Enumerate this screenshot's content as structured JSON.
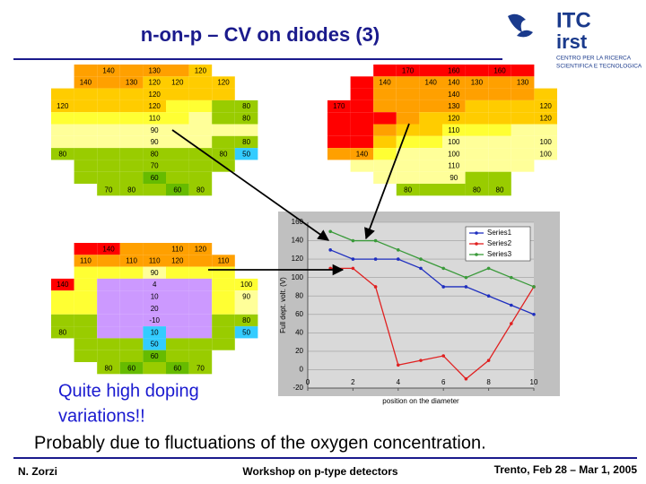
{
  "header": {
    "title": "n-on-p – CV on diodes (3)"
  },
  "logo": {
    "name1": "ITC",
    "name2": "irst",
    "caption": [
      "CENTRO PER LA RICERCA",
      "SCIENTIFICA E TECNOLOGICA"
    ]
  },
  "wafer_maps": [
    {
      "rows": [
        [
          null,
          {
            "color": "#ffa000"
          },
          {
            "color": "#ffa000",
            "value": 140
          },
          {
            "color": "#ffa000"
          },
          {
            "color": "#ffa000",
            "value": 130
          },
          {
            "color": "#ffa000"
          },
          {
            "color": "#ffcc00",
            "value": 120
          },
          null,
          null
        ],
        [
          null,
          {
            "color": "#ffa000",
            "value": 140
          },
          {
            "color": "#ffa000"
          },
          {
            "color": "#ffa000",
            "value": 130
          },
          {
            "color": "#ffcc00",
            "value": 120
          },
          {
            "color": "#ffcc00",
            "value": 120
          },
          {
            "color": "#ffcc00"
          },
          {
            "color": "#ffcc00",
            "value": 120
          },
          null
        ],
        [
          {
            "color": "#ffcc00"
          },
          {
            "color": "#ffcc00"
          },
          {
            "color": "#ffcc00"
          },
          {
            "color": "#ffcc00"
          },
          {
            "color": "#ffcc00",
            "value": 120
          },
          {
            "color": "#ffcc00"
          },
          {
            "color": "#ffcc00"
          },
          {
            "color": "#ffcc00"
          },
          null
        ],
        [
          {
            "color": "#ffcc00",
            "value": 120
          },
          {
            "color": "#ffcc00"
          },
          {
            "color": "#ffcc00"
          },
          {
            "color": "#ffcc00"
          },
          {
            "color": "#ffcc00",
            "value": 120
          },
          {
            "color": "#ffff33"
          },
          {
            "color": "#ffff33"
          },
          {
            "color": "#99cc00"
          },
          {
            "color": "#99cc00",
            "value": 80
          }
        ],
        [
          {
            "color": "#ffff33"
          },
          {
            "color": "#ffff33"
          },
          {
            "color": "#ffff33"
          },
          {
            "color": "#ffff33"
          },
          {
            "color": "#ffff33",
            "value": 110
          },
          {
            "color": "#ffff33"
          },
          {
            "color": "#ffff99"
          },
          {
            "color": "#99cc00"
          },
          {
            "color": "#99cc00",
            "value": 80
          }
        ],
        [
          {
            "color": "#ffff99"
          },
          {
            "color": "#ffff99"
          },
          {
            "color": "#ffff99"
          },
          {
            "color": "#ffff99"
          },
          {
            "color": "#ffff99",
            "value": 90
          },
          {
            "color": "#ffff99"
          },
          {
            "color": "#ffff99"
          },
          {
            "color": "#ffff99"
          },
          {
            "color": "#ffff99"
          }
        ],
        [
          {
            "color": "#ffff99"
          },
          {
            "color": "#ffff99"
          },
          {
            "color": "#ffff99"
          },
          {
            "color": "#ffff99"
          },
          {
            "color": "#ffff99",
            "value": 90
          },
          {
            "color": "#ffff99"
          },
          {
            "color": "#ffff99"
          },
          {
            "color": "#99cc00"
          },
          {
            "color": "#99cc00",
            "value": 80
          }
        ],
        [
          {
            "color": "#99cc00",
            "value": 80
          },
          {
            "color": "#99cc00"
          },
          {
            "color": "#99cc00"
          },
          {
            "color": "#99cc00"
          },
          {
            "color": "#99cc00",
            "value": 80
          },
          {
            "color": "#99cc00"
          },
          {
            "color": "#99cc00"
          },
          {
            "color": "#99cc00",
            "value": 80
          },
          {
            "color": "#33ccff",
            "value": 50
          }
        ],
        [
          null,
          {
            "color": "#99cc00"
          },
          {
            "color": "#99cc00"
          },
          {
            "color": "#99cc00"
          },
          {
            "color": "#99cc00",
            "value": 70
          },
          {
            "color": "#99cc00"
          },
          {
            "color": "#99cc00"
          },
          {
            "color": "#99cc00"
          },
          null
        ],
        [
          null,
          {
            "color": "#99cc00"
          },
          {
            "color": "#99cc00"
          },
          {
            "color": "#99cc00"
          },
          {
            "color": "#66bb00",
            "value": 60
          },
          {
            "color": "#99cc00"
          },
          {
            "color": "#99cc00"
          },
          null,
          null
        ],
        [
          null,
          null,
          {
            "color": "#99cc00",
            "value": 70
          },
          {
            "color": "#99cc00",
            "value": 80
          },
          {
            "color": "#99cc00"
          },
          {
            "color": "#66bb00",
            "value": 60
          },
          {
            "color": "#99cc00",
            "value": 80
          },
          null,
          null
        ]
      ]
    },
    {
      "rows": [
        [
          null,
          null,
          {
            "color": "#ff0000"
          },
          {
            "color": "#ff0000",
            "value": 170
          },
          {
            "color": "#ff0000"
          },
          {
            "color": "#ff0000",
            "value": 160
          },
          {
            "color": "#ff0000"
          },
          {
            "color": "#ff0000",
            "value": 160
          },
          {
            "color": "#ff0000"
          },
          null
        ],
        [
          null,
          {
            "color": "#ff0000"
          },
          {
            "color": "#ffa000",
            "value": 140
          },
          {
            "color": "#ffa000"
          },
          {
            "color": "#ffa000",
            "value": 140
          },
          {
            "color": "#ffa000",
            "value": 140
          },
          {
            "color": "#ffa000",
            "value": 130
          },
          {
            "color": "#ffa000"
          },
          {
            "color": "#ffa000",
            "value": 130
          },
          null
        ],
        [
          null,
          {
            "color": "#ff0000"
          },
          {
            "color": "#ffa000"
          },
          {
            "color": "#ffa000"
          },
          {
            "color": "#ffa000"
          },
          {
            "color": "#ffa000",
            "value": 140
          },
          {
            "color": "#ffa000"
          },
          {
            "color": "#ffa000"
          },
          {
            "color": "#ffa000"
          },
          {
            "color": "#ffcc00"
          }
        ],
        [
          {
            "color": "#ff0000",
            "value": 170
          },
          {
            "color": "#ff0000"
          },
          {
            "color": "#ffa000"
          },
          {
            "color": "#ffa000"
          },
          {
            "color": "#ffa000"
          },
          {
            "color": "#ffa000",
            "value": 130
          },
          {
            "color": "#ffcc00"
          },
          {
            "color": "#ffcc00"
          },
          {
            "color": "#ffcc00"
          },
          {
            "color": "#ffcc00",
            "value": 120
          }
        ],
        [
          {
            "color": "#ff0000"
          },
          {
            "color": "#ff0000"
          },
          {
            "color": "#ff0000"
          },
          {
            "color": "#ffa000"
          },
          {
            "color": "#ffcc00"
          },
          {
            "color": "#ffcc00",
            "value": 120
          },
          {
            "color": "#ffcc00"
          },
          {
            "color": "#ffcc00"
          },
          {
            "color": "#ffcc00"
          },
          {
            "color": "#ffcc00",
            "value": 120
          }
        ],
        [
          {
            "color": "#ff0000"
          },
          {
            "color": "#ff0000"
          },
          {
            "color": "#ffa000"
          },
          {
            "color": "#ffcc00"
          },
          {
            "color": "#ffcc00"
          },
          {
            "color": "#ffff33",
            "value": 110
          },
          {
            "color": "#ffff33"
          },
          {
            "color": "#ffff33"
          },
          {
            "color": "#ffff99"
          },
          {
            "color": "#ffff99"
          }
        ],
        [
          {
            "color": "#ff0000"
          },
          {
            "color": "#ff0000"
          },
          {
            "color": "#ffcc00"
          },
          {
            "color": "#ffff33"
          },
          {
            "color": "#ffff33"
          },
          {
            "color": "#ffff99",
            "value": 100
          },
          {
            "color": "#ffff99"
          },
          {
            "color": "#ffff99"
          },
          {
            "color": "#ffff99"
          },
          {
            "color": "#ffff99",
            "value": 100
          }
        ],
        [
          {
            "color": "#ffa000"
          },
          {
            "color": "#ffa000",
            "value": 140
          },
          {
            "color": "#ffff33"
          },
          {
            "color": "#ffff99"
          },
          {
            "color": "#ffff99"
          },
          {
            "color": "#ffff99",
            "value": 100
          },
          {
            "color": "#ffff99"
          },
          {
            "color": "#ffff99"
          },
          {
            "color": "#ffff99"
          },
          {
            "color": "#ffff99",
            "value": 100
          }
        ],
        [
          null,
          {
            "color": "#ffff99"
          },
          {
            "color": "#ffff99"
          },
          {
            "color": "#ffff99"
          },
          {
            "color": "#ffff99"
          },
          {
            "color": "#ffff99",
            "value": 110
          },
          {
            "color": "#ffff99"
          },
          {
            "color": "#ffff99"
          },
          {
            "color": "#ffff99"
          },
          null
        ],
        [
          null,
          null,
          {
            "color": "#ffff99"
          },
          {
            "color": "#ffff99"
          },
          {
            "color": "#ffff99"
          },
          {
            "color": "#ffff99",
            "value": 90
          },
          {
            "color": "#99cc00"
          },
          {
            "color": "#99cc00"
          },
          null,
          null
        ],
        [
          null,
          null,
          null,
          {
            "color": "#99cc00",
            "value": 80
          },
          {
            "color": "#99cc00"
          },
          {
            "color": "#99cc00"
          },
          {
            "color": "#99cc00",
            "value": 80
          },
          {
            "color": "#99cc00",
            "value": 80
          },
          null,
          null
        ]
      ]
    },
    {
      "rows": [
        [
          null,
          {
            "color": "#ff0000"
          },
          {
            "color": "#ff0000",
            "value": 140
          },
          {
            "color": "#ffa000"
          },
          {
            "color": "#ffa000"
          },
          {
            "color": "#ffa000",
            "value": 110
          },
          {
            "color": "#ffa000",
            "value": 120
          },
          null,
          null
        ],
        [
          null,
          {
            "color": "#ffa000",
            "value": 110
          },
          {
            "color": "#ffa000"
          },
          {
            "color": "#ffa000",
            "value": 110
          },
          {
            "color": "#ffa000",
            "value": 110
          },
          {
            "color": "#ffa000",
            "value": 120
          },
          {
            "color": "#ffa000"
          },
          {
            "color": "#ffa000",
            "value": 110
          },
          null
        ],
        [
          null,
          {
            "color": "#ffff33"
          },
          {
            "color": "#ffff33"
          },
          {
            "color": "#ffff33"
          },
          {
            "color": "#ffff99",
            "value": 90
          },
          {
            "color": "#ffff33"
          },
          {
            "color": "#ffff33"
          },
          {
            "color": "#ffff33"
          },
          null
        ],
        [
          {
            "color": "#ff0000",
            "value": 140
          },
          {
            "color": "#ffff33"
          },
          {
            "color": "#cc99ff"
          },
          {
            "color": "#cc99ff"
          },
          {
            "color": "#cc99ff",
            "value": 4
          },
          {
            "color": "#cc99ff"
          },
          {
            "color": "#cc99ff"
          },
          {
            "color": "#ffff33"
          },
          {
            "color": "#ffff33",
            "value": 100
          }
        ],
        [
          {
            "color": "#ffff33"
          },
          {
            "color": "#ffff33"
          },
          {
            "color": "#cc99ff"
          },
          {
            "color": "#cc99ff"
          },
          {
            "color": "#cc99ff",
            "value": 10
          },
          {
            "color": "#cc99ff"
          },
          {
            "color": "#cc99ff"
          },
          {
            "color": "#ffff33"
          },
          {
            "color": "#ffff99",
            "value": 90
          }
        ],
        [
          {
            "color": "#ffff33"
          },
          {
            "color": "#ffff33"
          },
          {
            "color": "#cc99ff"
          },
          {
            "color": "#cc99ff"
          },
          {
            "color": "#cc99ff",
            "value": 20
          },
          {
            "color": "#cc99ff"
          },
          {
            "color": "#cc99ff"
          },
          {
            "color": "#ffff33"
          },
          {
            "color": "#ffff99"
          }
        ],
        [
          {
            "color": "#99cc00"
          },
          {
            "color": "#99cc00"
          },
          {
            "color": "#cc99ff"
          },
          {
            "color": "#cc99ff"
          },
          {
            "color": "#cc99ff",
            "value": -10
          },
          {
            "color": "#cc99ff"
          },
          {
            "color": "#cc99ff"
          },
          {
            "color": "#99cc00"
          },
          {
            "color": "#99cc00",
            "value": 80
          }
        ],
        [
          {
            "color": "#99cc00",
            "value": 80
          },
          {
            "color": "#99cc00"
          },
          {
            "color": "#cc99ff"
          },
          {
            "color": "#cc99ff"
          },
          {
            "color": "#33ccff",
            "value": 10
          },
          {
            "color": "#cc99ff"
          },
          {
            "color": "#cc99ff"
          },
          {
            "color": "#99cc00"
          },
          {
            "color": "#33ccff",
            "value": 50
          }
        ],
        [
          null,
          {
            "color": "#99cc00"
          },
          {
            "color": "#99cc00"
          },
          {
            "color": "#99cc00"
          },
          {
            "color": "#33ccff",
            "value": 50
          },
          {
            "color": "#99cc00"
          },
          {
            "color": "#99cc00"
          },
          {
            "color": "#99cc00"
          },
          null
        ],
        [
          null,
          {
            "color": "#99cc00"
          },
          {
            "color": "#99cc00"
          },
          {
            "color": "#99cc00"
          },
          {
            "color": "#66bb00",
            "value": 60
          },
          {
            "color": "#99cc00"
          },
          {
            "color": "#99cc00"
          },
          null,
          null
        ],
        [
          null,
          null,
          {
            "color": "#99cc00",
            "value": 80
          },
          {
            "color": "#66bb00",
            "value": 60
          },
          {
            "color": "#99cc00"
          },
          {
            "color": "#66bb00",
            "value": 60
          },
          {
            "color": "#99cc00",
            "value": 70
          },
          null,
          null
        ]
      ]
    }
  ],
  "chart_data": {
    "type": "line",
    "x_label": "position on the diameter",
    "y_label": "Full dept. volt. (V)",
    "x": [
      1,
      2,
      3,
      4,
      5,
      6,
      7,
      8,
      9,
      10
    ],
    "series": [
      {
        "name": "Series1",
        "color": "#1f2fbf",
        "values": [
          130,
          120,
          120,
          120,
          110,
          90,
          90,
          80,
          70,
          60
        ]
      },
      {
        "name": "Series2",
        "color": "#e02020",
        "values": [
          110,
          110,
          90,
          5,
          10,
          15,
          -10,
          10,
          50,
          90
        ]
      },
      {
        "name": "Series3",
        "color": "#3a9a3a",
        "values": [
          150,
          140,
          140,
          130,
          120,
          110,
          100,
          110,
          100,
          90
        ]
      }
    ],
    "xlim": [
      0,
      10
    ],
    "xticks": [
      0,
      2,
      4,
      6,
      8,
      10
    ],
    "ylim": [
      -20,
      160
    ],
    "yticks": [
      -20,
      0,
      20,
      40,
      60,
      80,
      100,
      120,
      140,
      160
    ],
    "grid": true,
    "legend": "upper right"
  },
  "body": {
    "note": [
      "Quite high doping",
      "variations!!"
    ],
    "conclusion": "Probably due to fluctuations of the oxygen concentration."
  },
  "footer": {
    "author": "N. Zorzi",
    "event": "Workshop on p-type detectors",
    "place_date": "Trento, Feb 28 – Mar 1, 2005"
  }
}
